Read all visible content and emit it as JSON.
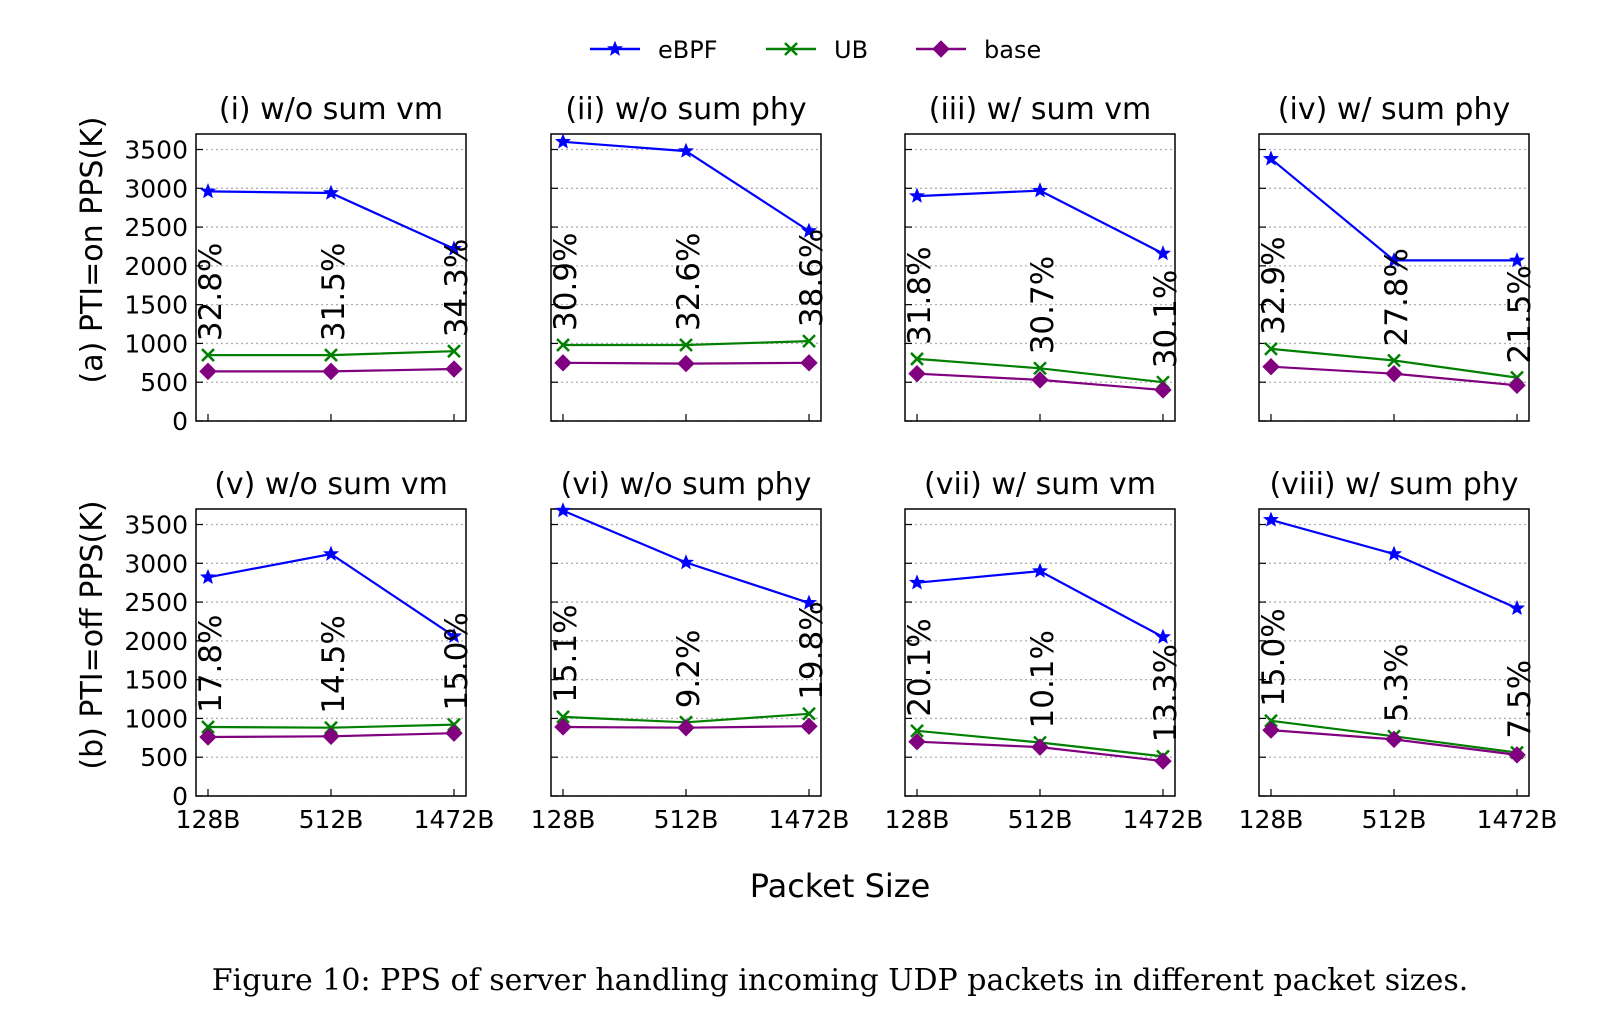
{
  "legend": {
    "placement": "top-center",
    "entries": [
      {
        "name": "eBPF",
        "color": "#0000ff",
        "marker": "star"
      },
      {
        "name": "UB",
        "color": "#008000",
        "marker": "x"
      },
      {
        "name": "base",
        "color": "#800080",
        "marker": "diamond"
      }
    ]
  },
  "row_labels": [
    "(a) PTI=on PPS(K)",
    "(b) PTI=off PPS(K)"
  ],
  "xlabel": "Packet Size",
  "caption": "Figure 10: PPS of server handling incoming UDP packets in different packet sizes.",
  "chart_data": [
    {
      "type": "line",
      "title": "(i) w/o sum vm",
      "ylabel": "(a) PTI=on PPS(K)",
      "categories": [
        "128B",
        "512B",
        "1472B"
      ],
      "ylim": [
        0,
        3700
      ],
      "yticks": [
        0,
        500,
        1000,
        1500,
        2000,
        2500,
        3000,
        3500
      ],
      "grid": true,
      "series": [
        {
          "name": "eBPF",
          "values": [
            2960,
            2940,
            2220
          ]
        },
        {
          "name": "UB",
          "values": [
            850,
            850,
            900
          ]
        },
        {
          "name": "base",
          "values": [
            640,
            640,
            670
          ]
        }
      ],
      "annotations": [
        "32.8%",
        "31.5%",
        "34.3%"
      ]
    },
    {
      "type": "line",
      "title": "(ii) w/o sum phy",
      "categories": [
        "128B",
        "512B",
        "1472B"
      ],
      "ylim": [
        0,
        3700
      ],
      "grid": true,
      "series": [
        {
          "name": "eBPF",
          "values": [
            3600,
            3480,
            2450
          ]
        },
        {
          "name": "UB",
          "values": [
            980,
            980,
            1030
          ]
        },
        {
          "name": "base",
          "values": [
            750,
            740,
            750
          ]
        }
      ],
      "annotations": [
        "30.9%",
        "32.6%",
        "38.6%"
      ]
    },
    {
      "type": "line",
      "title": "(iii) w/ sum vm",
      "categories": [
        "128B",
        "512B",
        "1472B"
      ],
      "ylim": [
        0,
        3700
      ],
      "grid": true,
      "series": [
        {
          "name": "eBPF",
          "values": [
            2900,
            2970,
            2160
          ]
        },
        {
          "name": "UB",
          "values": [
            800,
            680,
            500
          ]
        },
        {
          "name": "base",
          "values": [
            610,
            530,
            400
          ]
        }
      ],
      "annotations": [
        "31.8%",
        "30.7%",
        "30.1%"
      ]
    },
    {
      "type": "line",
      "title": "(iv) w/ sum phy",
      "categories": [
        "128B",
        "512B",
        "1472B"
      ],
      "ylim": [
        0,
        3700
      ],
      "grid": true,
      "series": [
        {
          "name": "eBPF",
          "values": [
            3380,
            2070,
            2070
          ]
        },
        {
          "name": "UB",
          "values": [
            930,
            780,
            560
          ]
        },
        {
          "name": "base",
          "values": [
            700,
            610,
            460
          ]
        }
      ],
      "annotations": [
        "32.9%",
        "27.8%",
        "21.5%"
      ]
    },
    {
      "type": "line",
      "title": "(v) w/o sum vm",
      "ylabel": "(b) PTI=off PPS(K)",
      "categories": [
        "128B",
        "512B",
        "1472B"
      ],
      "ylim": [
        0,
        3700
      ],
      "yticks": [
        0,
        500,
        1000,
        1500,
        2000,
        2500,
        3000,
        3500
      ],
      "grid": true,
      "series": [
        {
          "name": "eBPF",
          "values": [
            2820,
            3120,
            2060
          ]
        },
        {
          "name": "UB",
          "values": [
            890,
            880,
            920
          ]
        },
        {
          "name": "base",
          "values": [
            760,
            770,
            810
          ]
        }
      ],
      "annotations": [
        "17.8%",
        "14.5%",
        "15.0%"
      ]
    },
    {
      "type": "line",
      "title": "(vi) w/o sum phy",
      "categories": [
        "128B",
        "512B",
        "1472B"
      ],
      "ylim": [
        0,
        3700
      ],
      "grid": true,
      "series": [
        {
          "name": "eBPF",
          "values": [
            3680,
            3010,
            2490
          ]
        },
        {
          "name": "UB",
          "values": [
            1020,
            950,
            1060
          ]
        },
        {
          "name": "base",
          "values": [
            890,
            880,
            900
          ]
        }
      ],
      "annotations": [
        "15.1%",
        "9.2%",
        "19.8%"
      ]
    },
    {
      "type": "line",
      "title": "(vii) w/ sum vm",
      "categories": [
        "128B",
        "512B",
        "1472B"
      ],
      "ylim": [
        0,
        3700
      ],
      "grid": true,
      "series": [
        {
          "name": "eBPF",
          "values": [
            2750,
            2900,
            2050
          ]
        },
        {
          "name": "UB",
          "values": [
            840,
            690,
            510
          ]
        },
        {
          "name": "base",
          "values": [
            700,
            630,
            450
          ]
        }
      ],
      "annotations": [
        "20.1%",
        "10.1%",
        "13.3%"
      ]
    },
    {
      "type": "line",
      "title": "(viii) w/ sum phy",
      "categories": [
        "128B",
        "512B",
        "1472B"
      ],
      "ylim": [
        0,
        3700
      ],
      "grid": true,
      "series": [
        {
          "name": "eBPF",
          "values": [
            3560,
            3120,
            2420
          ]
        },
        {
          "name": "UB",
          "values": [
            970,
            770,
            560
          ]
        },
        {
          "name": "base",
          "values": [
            850,
            730,
            530
          ]
        }
      ],
      "annotations": [
        "15.0%",
        "5.3%",
        "7.5%"
      ]
    }
  ]
}
